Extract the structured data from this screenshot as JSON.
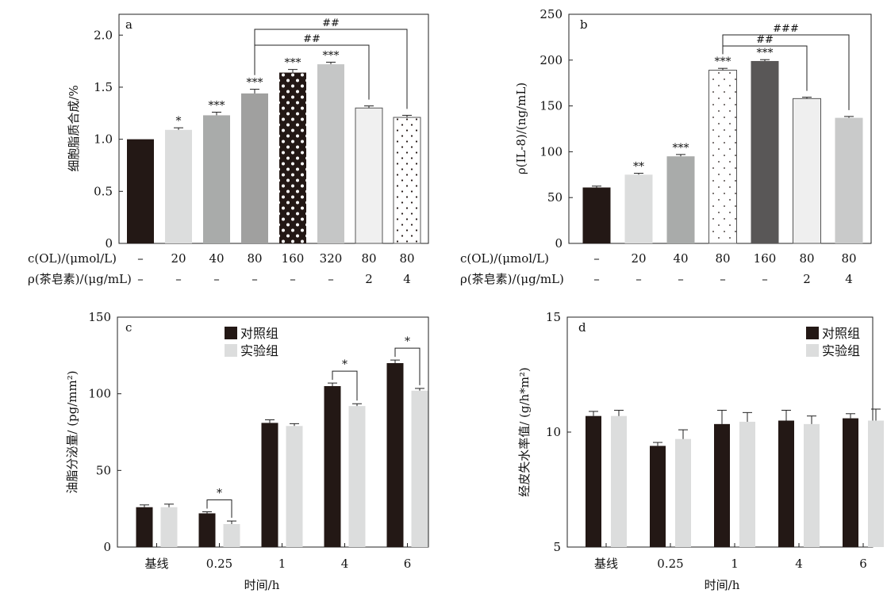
{
  "chart_data": [
    {
      "panel": "a",
      "type": "bar",
      "ylabel": "细胞脂质合成/%",
      "ylim": [
        0,
        2.2
      ],
      "yticks": [
        "0",
        "0.5",
        "1.0",
        "1.5",
        "2.0"
      ],
      "ytick_values": [
        0,
        0.5,
        1.0,
        1.5,
        2.0
      ],
      "row_labels": [
        "c(OL)/(μmol/L)",
        "ρ(茶皂素)/(μg/mL)"
      ],
      "row1": [
        "–",
        "20",
        "40",
        "80",
        "160",
        "320",
        "80",
        "80"
      ],
      "row2": [
        "–",
        "–",
        "–",
        "–",
        "–",
        "–",
        "2",
        "4"
      ],
      "values": [
        1.0,
        1.09,
        1.23,
        1.44,
        1.64,
        1.72,
        1.3,
        1.21
      ],
      "errors": [
        0,
        0.02,
        0.03,
        0.04,
        0.03,
        0.02,
        0.02,
        0.02
      ],
      "sig": [
        "",
        "*",
        "***",
        "***",
        "***",
        "***",
        "",
        ""
      ],
      "brackets": [
        {
          "from": 3,
          "to": 7,
          "label": "##",
          "level": 1
        },
        {
          "from": 3,
          "to": 6,
          "label": "##",
          "level": 0
        }
      ],
      "styles": [
        "#231815",
        "#dcdddd",
        "#a9abaa",
        "#a0a09f",
        "dots-dark",
        "#c5c6c6",
        "#f0f0f0",
        "dots-light"
      ]
    },
    {
      "panel": "b",
      "type": "bar",
      "ylabel": "ρ(IL-8)/(ng/mL)",
      "ylim": [
        0,
        250
      ],
      "yticks": [
        "0",
        "50",
        "100",
        "150",
        "200",
        "250"
      ],
      "ytick_values": [
        0,
        50,
        100,
        150,
        200,
        250
      ],
      "row_labels": [
        "c(OL)/(μmol/L)",
        "ρ(茶皂素)/(μg/mL)"
      ],
      "row1": [
        "–",
        "20",
        "40",
        "80",
        "160",
        "80",
        "80"
      ],
      "row2": [
        "–",
        "–",
        "–",
        "–",
        "–",
        "2",
        "4"
      ],
      "values": [
        61,
        75,
        95,
        189,
        199,
        158,
        137
      ],
      "errors": [
        1.5,
        1.5,
        2,
        2,
        1.5,
        1.5,
        1.5
      ],
      "sig": [
        "",
        "**",
        "***",
        "***",
        "***",
        "",
        ""
      ],
      "brackets": [
        {
          "from": 3,
          "to": 6,
          "label": "###",
          "level": 1
        },
        {
          "from": 3,
          "to": 5,
          "label": "##",
          "level": 0
        }
      ],
      "styles": [
        "#231815",
        "#dcdddd",
        "#a9abaa",
        "dots-light-sparse",
        "#595757",
        "#efefef",
        "#c9caca"
      ]
    },
    {
      "panel": "c",
      "type": "bar",
      "ylabel": "油脂分泌量/ (pg/mm²)",
      "xlabel": "时间/h",
      "ylim": [
        0,
        150
      ],
      "yticks": [
        "0",
        "50",
        "100",
        "150"
      ],
      "ytick_values": [
        0,
        50,
        100,
        150
      ],
      "categories": [
        "基线",
        "0.25",
        "1",
        "4",
        "6"
      ],
      "series": [
        {
          "name": "对照组",
          "color": "#231815",
          "values": [
            26,
            22,
            81,
            105,
            120
          ],
          "errors": [
            1.5,
            1,
            2,
            2,
            2
          ]
        },
        {
          "name": "实验组",
          "color": "#dcdddd",
          "values": [
            26,
            15,
            79,
            92,
            102
          ],
          "errors": [
            2,
            2,
            1.5,
            1.5,
            1.5
          ]
        }
      ],
      "pair_sig": [
        {
          "category": 1,
          "label": "*"
        },
        {
          "category": 3,
          "label": "*"
        },
        {
          "category": 4,
          "label": "*"
        }
      ],
      "legend_position": "top-center"
    },
    {
      "panel": "d",
      "type": "bar",
      "ylabel": "经皮失水率值/ (g/h*m²)",
      "xlabel": "时间/h",
      "ylim": [
        5,
        15
      ],
      "yticks": [
        "5",
        "10",
        "15"
      ],
      "ytick_values": [
        5,
        10,
        15
      ],
      "categories": [
        "基线",
        "0.25",
        "1",
        "4",
        "6"
      ],
      "series": [
        {
          "name": "对照组",
          "color": "#231815",
          "values": [
            10.7,
            9.4,
            10.35,
            10.5,
            10.6
          ],
          "errors": [
            0.2,
            0.15,
            0.6,
            0.45,
            0.2
          ]
        },
        {
          "name": "实验组",
          "color": "#dcdddd",
          "values": [
            10.7,
            9.7,
            10.45,
            10.35,
            10.5
          ],
          "errors": [
            0.25,
            0.4,
            0.4,
            0.35,
            0.5
          ]
        }
      ],
      "pair_sig": [],
      "legend_position": "top-right"
    }
  ]
}
